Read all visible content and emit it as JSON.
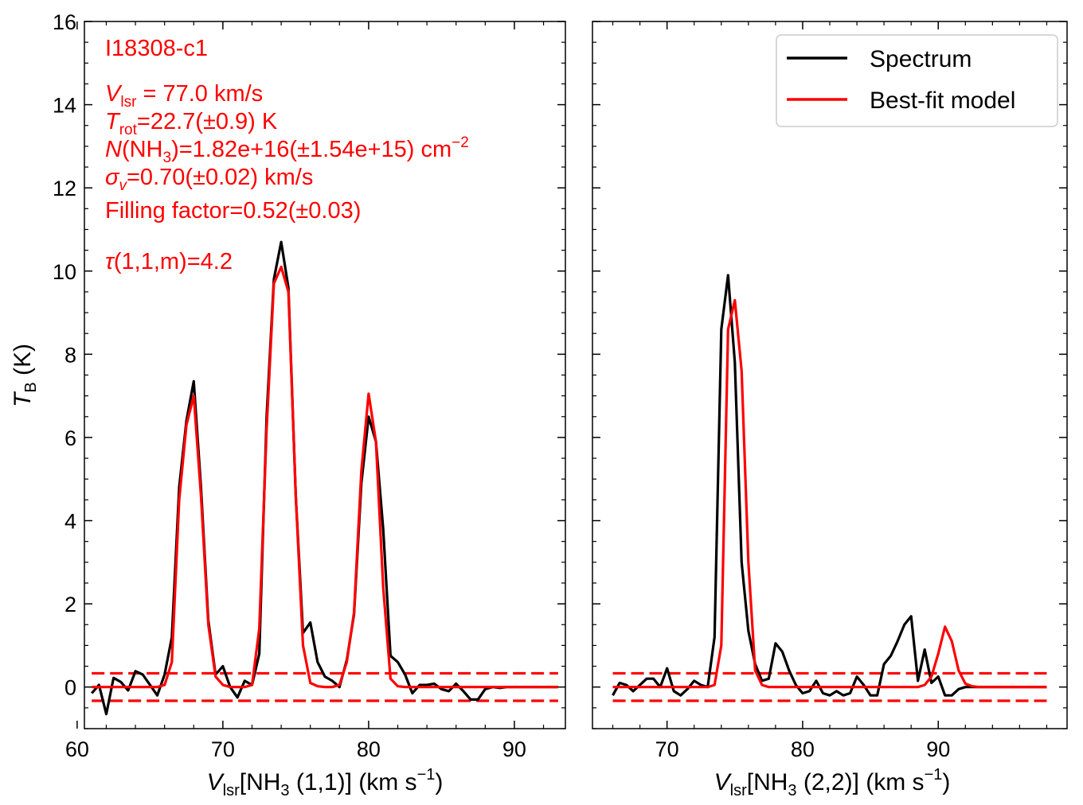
{
  "chart_data": [
    {
      "type": "line",
      "panel": "left",
      "xlabel_parts": {
        "v": "V",
        "sub": "lsr",
        "mid": "[NH",
        "sub3": "3",
        "tail": " (1,1)] (km s",
        "sup": "−1",
        "end": ")"
      },
      "ylabel_parts": {
        "t": "T",
        "sub": "B",
        "tail": " (K)"
      },
      "xlim": [
        60.5,
        93.5
      ],
      "ylim": [
        -1,
        16
      ],
      "x_ticks": [
        60,
        70,
        80,
        90
      ],
      "y_ticks": [
        0,
        2,
        4,
        6,
        8,
        10,
        12,
        14,
        16
      ],
      "annotations": {
        "source": "I18308-c1",
        "vlsr": {
          "v": "V",
          "sub": "lsr",
          "tail": " = 77.0 km/s"
        },
        "trot": {
          "t": "T",
          "sub": "rot",
          "tail": "=22.7(±0.9) K"
        },
        "ncol": {
          "n": "N",
          "a": "(NH",
          "sub": "3",
          "b": ")=1.82e+16(±1.54e+15) cm",
          "sup": "−2"
        },
        "sigma": {
          "s": "σ",
          "sub": "v",
          "tail": "=0.70(±0.02) km/s"
        },
        "filling": "Filling factor=0.52(±0.03)",
        "tau": {
          "t": "τ",
          "tail": "(1,1,m)=4.2"
        }
      },
      "noise_levels": [
        0.33,
        -0.33
      ],
      "series": [
        {
          "name": "Spectrum",
          "color": "#000000",
          "x": [
            61.0,
            61.5,
            62.0,
            62.5,
            63.0,
            63.5,
            64.0,
            64.5,
            65.0,
            65.5,
            66.0,
            66.5,
            67.0,
            67.5,
            68.0,
            68.5,
            69.0,
            69.5,
            70.0,
            70.5,
            71.0,
            71.5,
            72.0,
            72.5,
            73.0,
            73.5,
            74.0,
            74.5,
            75.0,
            75.5,
            76.0,
            76.5,
            77.0,
            77.5,
            78.0,
            78.5,
            79.0,
            79.5,
            80.0,
            80.5,
            81.0,
            81.5,
            82.0,
            82.5,
            83.0,
            83.5,
            84.0,
            84.5,
            85.0,
            85.5,
            86.0,
            86.5,
            87.0,
            87.5,
            88.0,
            88.5,
            89.0,
            89.5,
            90.0,
            90.5,
            91.0,
            91.5,
            92.0,
            92.5,
            93.0
          ],
          "y": [
            -0.15,
            0.05,
            -0.65,
            0.22,
            0.12,
            -0.08,
            0.38,
            0.3,
            0.05,
            -0.2,
            0.3,
            1.2,
            4.8,
            6.4,
            7.35,
            4.8,
            1.6,
            0.3,
            0.5,
            0.0,
            -0.25,
            0.15,
            0.05,
            0.8,
            6.5,
            9.8,
            10.7,
            9.6,
            4.6,
            1.3,
            1.55,
            0.6,
            0.25,
            0.15,
            0.0,
            0.65,
            1.75,
            4.9,
            6.5,
            5.9,
            3.8,
            0.75,
            0.6,
            0.3,
            -0.15,
            0.05,
            0.05,
            0.08,
            -0.05,
            -0.1,
            0.08,
            -0.1,
            -0.3,
            -0.3,
            -0.05,
            0.0,
            -0.02,
            0.0,
            0.0,
            0.0,
            0.0,
            0.0,
            0.0,
            0.0,
            0.0
          ]
        },
        {
          "name": "Best-fit model",
          "color": "#ff0000",
          "x": [
            61.0,
            61.5,
            62.0,
            62.5,
            63.0,
            63.5,
            64.0,
            64.5,
            65.0,
            65.5,
            66.0,
            66.5,
            67.0,
            67.5,
            68.0,
            68.5,
            69.0,
            69.5,
            70.0,
            70.5,
            71.0,
            71.5,
            72.0,
            72.5,
            73.0,
            73.5,
            74.0,
            74.5,
            75.0,
            75.5,
            76.0,
            76.5,
            77.0,
            77.5,
            78.0,
            78.5,
            79.0,
            79.5,
            80.0,
            80.5,
            81.0,
            81.5,
            82.0,
            82.5,
            83.0,
            83.5,
            84.0,
            84.5,
            85.0,
            85.5,
            86.0,
            86.5,
            87.0,
            87.5,
            88.0,
            88.5,
            89.0,
            89.5,
            90.0,
            90.5,
            91.0,
            91.5,
            92.0,
            92.5,
            93.0
          ],
          "y": [
            0.0,
            0.0,
            0.0,
            0.0,
            0.0,
            0.0,
            0.0,
            0.0,
            0.0,
            0.0,
            0.05,
            0.6,
            4.5,
            6.3,
            7.0,
            4.6,
            1.5,
            0.25,
            0.05,
            0.0,
            0.0,
            0.0,
            0.05,
            1.4,
            6.2,
            9.7,
            10.1,
            9.5,
            4.6,
            1.0,
            0.1,
            0.02,
            0.0,
            0.0,
            0.05,
            0.6,
            1.8,
            5.2,
            7.05,
            5.9,
            2.4,
            0.2,
            0.02,
            0.0,
            0.0,
            0.0,
            0.0,
            0.0,
            0.0,
            0.0,
            0.0,
            0.0,
            0.0,
            0.0,
            0.0,
            0.0,
            0.0,
            0.0,
            0.0,
            0.0,
            0.0,
            0.0,
            0.0,
            0.0,
            0.0
          ]
        }
      ]
    },
    {
      "type": "line",
      "panel": "right",
      "xlabel_parts": {
        "v": "V",
        "sub": "lsr",
        "mid": "[NH",
        "sub3": "3",
        "tail": " (2,2)] (km s",
        "sup": "−1",
        "end": ")"
      },
      "xlim": [
        64.5,
        99.5
      ],
      "ylim": [
        -1,
        16
      ],
      "x_ticks": [
        70,
        80,
        90
      ],
      "noise_levels": [
        0.33,
        -0.33
      ],
      "legend": {
        "position": "top-right",
        "entries": [
          "Spectrum",
          "Best-fit model"
        ]
      },
      "series": [
        {
          "name": "Spectrum",
          "color": "#000000",
          "x": [
            66.0,
            66.5,
            67.0,
            67.5,
            68.0,
            68.5,
            69.0,
            69.5,
            70.0,
            70.5,
            71.0,
            71.5,
            72.0,
            72.5,
            73.0,
            73.5,
            74.0,
            74.5,
            75.0,
            75.5,
            76.0,
            76.5,
            77.0,
            77.5,
            78.0,
            78.5,
            79.0,
            79.5,
            80.0,
            80.5,
            81.0,
            81.5,
            82.0,
            82.5,
            83.0,
            83.5,
            84.0,
            84.5,
            85.0,
            85.5,
            86.0,
            86.5,
            87.0,
            87.5,
            88.0,
            88.5,
            89.0,
            89.5,
            90.0,
            90.5,
            91.0,
            91.5,
            92.0,
            92.5,
            93.0,
            93.5,
            94.0,
            94.5,
            95.0,
            95.5,
            96.0,
            96.5,
            97.0,
            97.5,
            98.0
          ],
          "y": [
            -0.2,
            0.1,
            0.05,
            -0.1,
            0.05,
            0.2,
            0.2,
            0.0,
            0.45,
            -0.1,
            -0.2,
            -0.05,
            0.15,
            0.05,
            0.0,
            1.2,
            8.6,
            9.9,
            7.8,
            3.0,
            1.35,
            0.55,
            0.15,
            0.2,
            1.05,
            0.85,
            0.4,
            0.05,
            -0.15,
            -0.1,
            0.15,
            -0.15,
            -0.2,
            -0.1,
            -0.2,
            -0.15,
            0.25,
            0.05,
            -0.2,
            -0.2,
            0.55,
            0.75,
            1.1,
            1.5,
            1.7,
            0.15,
            0.9,
            0.1,
            0.25,
            -0.2,
            -0.2,
            -0.05,
            0.0,
            0.0,
            0.0,
            0.0,
            0.0,
            0.0,
            0.0,
            0.0,
            0.0,
            0.0,
            0.0,
            0.0,
            0.0
          ]
        },
        {
          "name": "Best-fit model",
          "color": "#ff0000",
          "x": [
            66.0,
            66.5,
            67.0,
            67.5,
            68.0,
            68.5,
            69.0,
            69.5,
            70.0,
            70.5,
            71.0,
            71.5,
            72.0,
            72.5,
            73.0,
            73.5,
            74.0,
            74.5,
            75.0,
            75.5,
            76.0,
            76.5,
            77.0,
            77.5,
            78.0,
            78.5,
            79.0,
            79.5,
            80.0,
            80.5,
            81.0,
            81.5,
            82.0,
            82.5,
            83.0,
            83.5,
            84.0,
            84.5,
            85.0,
            85.5,
            86.0,
            86.5,
            87.0,
            87.5,
            88.0,
            88.5,
            89.0,
            89.5,
            90.0,
            90.5,
            91.0,
            91.5,
            92.0,
            92.5,
            93.0,
            93.5,
            94.0,
            94.5,
            95.0,
            95.5,
            96.0,
            96.5,
            97.0,
            97.5,
            98.0
          ],
          "y": [
            0.0,
            0.0,
            0.0,
            0.0,
            0.0,
            0.0,
            0.0,
            0.0,
            0.0,
            0.0,
            0.0,
            0.0,
            0.0,
            0.0,
            0.0,
            0.05,
            1.0,
            8.6,
            9.3,
            7.6,
            3.0,
            0.4,
            0.05,
            0.0,
            0.0,
            0.0,
            0.0,
            0.0,
            0.0,
            0.0,
            0.0,
            0.0,
            0.0,
            0.0,
            0.0,
            0.0,
            0.0,
            0.0,
            0.0,
            0.0,
            0.0,
            0.0,
            0.0,
            0.0,
            0.0,
            0.0,
            0.05,
            0.25,
            0.8,
            1.45,
            1.1,
            0.4,
            0.08,
            0.02,
            0.0,
            0.0,
            0.0,
            0.0,
            0.0,
            0.0,
            0.0,
            0.0,
            0.0,
            0.0,
            0.0
          ]
        }
      ]
    }
  ]
}
